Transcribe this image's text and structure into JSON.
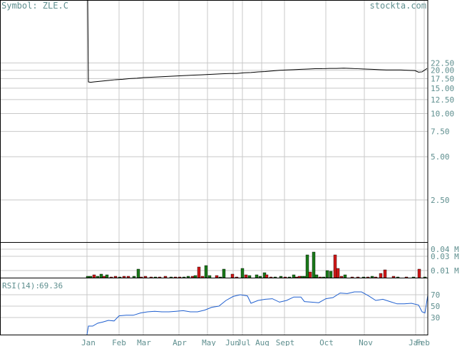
{
  "header": {
    "symbol_label": "Symbol: ZLE.C",
    "brand": "stockta.com"
  },
  "colors": {
    "text": "#5f8f8f",
    "grid": "#c8c8c8",
    "frame": "#000000",
    "price_line": "#000000",
    "rsi_line": "#1f5fcf",
    "vol_up": "#1a7a1a",
    "vol_down": "#d01818"
  },
  "chart_data": [
    {
      "type": "line",
      "name": "price",
      "y_scale": "log",
      "yticks": [
        "22.50",
        "20.00",
        "17.50",
        "15.00",
        "12.50",
        "10.00",
        "7.50",
        "5.00",
        "2.50"
      ],
      "months": [
        "Jan",
        "Feb",
        "Mar",
        "Apr",
        "May",
        "Jun",
        "Jul",
        "Aug",
        "Sept",
        "Oct",
        "Nov",
        "Jan",
        "Feb"
      ],
      "values": [
        [
          0,
          80
        ],
        [
          1,
          80
        ],
        [
          2,
          16.6
        ],
        [
          5,
          16.5
        ],
        [
          10,
          16.6
        ],
        [
          20,
          16.8
        ],
        [
          30,
          17.0
        ],
        [
          40,
          17.2
        ],
        [
          50,
          17.3
        ],
        [
          60,
          17.5
        ],
        [
          70,
          17.6
        ],
        [
          80,
          17.8
        ],
        [
          90,
          17.9
        ],
        [
          100,
          18.0
        ],
        [
          110,
          18.1
        ],
        [
          120,
          18.2
        ],
        [
          130,
          18.3
        ],
        [
          140,
          18.4
        ],
        [
          150,
          18.5
        ],
        [
          160,
          18.6
        ],
        [
          170,
          18.7
        ],
        [
          180,
          18.8
        ],
        [
          190,
          18.9
        ],
        [
          200,
          19.0
        ],
        [
          210,
          19.0
        ],
        [
          220,
          19.2
        ],
        [
          230,
          19.3
        ],
        [
          240,
          19.5
        ],
        [
          250,
          19.6
        ],
        [
          260,
          19.8
        ],
        [
          270,
          20.0
        ],
        [
          280,
          20.1
        ],
        [
          290,
          20.2
        ],
        [
          300,
          20.3
        ],
        [
          310,
          20.4
        ],
        [
          320,
          20.5
        ],
        [
          330,
          20.5
        ],
        [
          340,
          20.6
        ],
        [
          350,
          20.6
        ],
        [
          360,
          20.7
        ],
        [
          370,
          20.6
        ],
        [
          380,
          20.5
        ],
        [
          390,
          20.4
        ],
        [
          400,
          20.3
        ],
        [
          410,
          20.2
        ],
        [
          420,
          20.1
        ],
        [
          430,
          20.1
        ],
        [
          440,
          20.1
        ],
        [
          450,
          20.0
        ],
        [
          460,
          19.9
        ],
        [
          465,
          19.4
        ],
        [
          470,
          19.5
        ],
        [
          477,
          20.6
        ]
      ]
    },
    {
      "type": "bar",
      "name": "volume",
      "yticks": [
        "0.04 M",
        "0.03 M",
        "0.01 M"
      ],
      "ylim": [
        0,
        0.05
      ],
      "bars": [
        {
          "x": 1,
          "v": 0.002,
          "c": "up"
        },
        {
          "x": 5,
          "v": 0.002,
          "c": "up"
        },
        {
          "x": 10,
          "v": 0.004,
          "c": "down"
        },
        {
          "x": 15,
          "v": 0.002,
          "c": "up"
        },
        {
          "x": 20,
          "v": 0.005,
          "c": "up"
        },
        {
          "x": 24,
          "v": 0.002,
          "c": "down"
        },
        {
          "x": 28,
          "v": 0.004,
          "c": "up"
        },
        {
          "x": 34,
          "v": 0.001,
          "c": "down"
        },
        {
          "x": 40,
          "v": 0.002,
          "c": "down"
        },
        {
          "x": 46,
          "v": 0.001,
          "c": "up"
        },
        {
          "x": 52,
          "v": 0.002,
          "c": "down"
        },
        {
          "x": 58,
          "v": 0.002,
          "c": "down"
        },
        {
          "x": 66,
          "v": 0.002,
          "c": "up"
        },
        {
          "x": 72,
          "v": 0.012,
          "c": "up"
        },
        {
          "x": 76,
          "v": 0.001,
          "c": "down"
        },
        {
          "x": 82,
          "v": 0.002,
          "c": "down"
        },
        {
          "x": 90,
          "v": 0.001,
          "c": "down"
        },
        {
          "x": 96,
          "v": 0.001,
          "c": "up"
        },
        {
          "x": 102,
          "v": 0.001,
          "c": "down"
        },
        {
          "x": 110,
          "v": 0.002,
          "c": "down"
        },
        {
          "x": 118,
          "v": 0.001,
          "c": "up"
        },
        {
          "x": 124,
          "v": 0.001,
          "c": "down"
        },
        {
          "x": 130,
          "v": 0.001,
          "c": "down"
        },
        {
          "x": 136,
          "v": 0.001,
          "c": "up"
        },
        {
          "x": 142,
          "v": 0.002,
          "c": "up"
        },
        {
          "x": 148,
          "v": 0.002,
          "c": "down"
        },
        {
          "x": 152,
          "v": 0.003,
          "c": "up"
        },
        {
          "x": 157,
          "v": 0.015,
          "c": "down"
        },
        {
          "x": 162,
          "v": 0.002,
          "c": "down"
        },
        {
          "x": 167,
          "v": 0.017,
          "c": "up"
        },
        {
          "x": 172,
          "v": 0.003,
          "c": "up"
        },
        {
          "x": 182,
          "v": 0.003,
          "c": "down"
        },
        {
          "x": 187,
          "v": 0.001,
          "c": "up"
        },
        {
          "x": 192,
          "v": 0.012,
          "c": "up"
        },
        {
          "x": 204,
          "v": 0.005,
          "c": "down"
        },
        {
          "x": 210,
          "v": 0.001,
          "c": "down"
        },
        {
          "x": 218,
          "v": 0.013,
          "c": "up"
        },
        {
          "x": 223,
          "v": 0.004,
          "c": "down"
        },
        {
          "x": 228,
          "v": 0.003,
          "c": "up"
        },
        {
          "x": 238,
          "v": 0.004,
          "c": "up"
        },
        {
          "x": 243,
          "v": 0.002,
          "c": "up"
        },
        {
          "x": 249,
          "v": 0.007,
          "c": "up"
        },
        {
          "x": 252,
          "v": 0.004,
          "c": "down"
        },
        {
          "x": 258,
          "v": 0.001,
          "c": "down"
        },
        {
          "x": 264,
          "v": 0.001,
          "c": "up"
        },
        {
          "x": 272,
          "v": 0.002,
          "c": "up"
        },
        {
          "x": 278,
          "v": 0.001,
          "c": "down"
        },
        {
          "x": 284,
          "v": 0.001,
          "c": "up"
        },
        {
          "x": 290,
          "v": 0.004,
          "c": "up"
        },
        {
          "x": 294,
          "v": 0.001,
          "c": "down"
        },
        {
          "x": 298,
          "v": 0.002,
          "c": "down"
        },
        {
          "x": 302,
          "v": 0.002,
          "c": "up"
        },
        {
          "x": 306,
          "v": 0.002,
          "c": "up"
        },
        {
          "x": 309,
          "v": 0.032,
          "c": "up"
        },
        {
          "x": 313,
          "v": 0.008,
          "c": "down"
        },
        {
          "x": 318,
          "v": 0.036,
          "c": "up"
        },
        {
          "x": 322,
          "v": 0.004,
          "c": "up"
        },
        {
          "x": 327,
          "v": 0.001,
          "c": "down"
        },
        {
          "x": 332,
          "v": 0.001,
          "c": "up"
        },
        {
          "x": 337,
          "v": 0.01,
          "c": "up"
        },
        {
          "x": 342,
          "v": 0.009,
          "c": "up"
        },
        {
          "x": 348,
          "v": 0.032,
          "c": "down"
        },
        {
          "x": 352,
          "v": 0.013,
          "c": "down"
        },
        {
          "x": 357,
          "v": 0.002,
          "c": "down"
        },
        {
          "x": 362,
          "v": 0.004,
          "c": "up"
        },
        {
          "x": 372,
          "v": 0.001,
          "c": "down"
        },
        {
          "x": 380,
          "v": 0.001,
          "c": "down"
        },
        {
          "x": 388,
          "v": 0.001,
          "c": "up"
        },
        {
          "x": 394,
          "v": 0.001,
          "c": "down"
        },
        {
          "x": 400,
          "v": 0.002,
          "c": "up"
        },
        {
          "x": 405,
          "v": 0.001,
          "c": "down"
        },
        {
          "x": 412,
          "v": 0.006,
          "c": "down"
        },
        {
          "x": 418,
          "v": 0.011,
          "c": "down"
        },
        {
          "x": 430,
          "v": 0.002,
          "c": "down"
        },
        {
          "x": 436,
          "v": 0.001,
          "c": "up"
        },
        {
          "x": 448,
          "v": 0.001,
          "c": "down"
        },
        {
          "x": 458,
          "v": 0.001,
          "c": "up"
        },
        {
          "x": 466,
          "v": 0.012,
          "c": "down"
        },
        {
          "x": 474,
          "v": 0.001,
          "c": "up"
        }
      ]
    },
    {
      "type": "line",
      "name": "rsi",
      "label": "RSI(14):",
      "value_label": "69.36",
      "yticks": [
        "70",
        "50",
        "30"
      ],
      "ylim": [
        0,
        100
      ],
      "values": [
        [
          0,
          0
        ],
        [
          2,
          15
        ],
        [
          8,
          15
        ],
        [
          15,
          20
        ],
        [
          22,
          22
        ],
        [
          30,
          25
        ],
        [
          38,
          24
        ],
        [
          45,
          33
        ],
        [
          55,
          34
        ],
        [
          65,
          34
        ],
        [
          75,
          38
        ],
        [
          85,
          40
        ],
        [
          95,
          41
        ],
        [
          105,
          40
        ],
        [
          115,
          40
        ],
        [
          125,
          41
        ],
        [
          135,
          42
        ],
        [
          145,
          40
        ],
        [
          155,
          40
        ],
        [
          165,
          43
        ],
        [
          175,
          48
        ],
        [
          185,
          50
        ],
        [
          195,
          60
        ],
        [
          205,
          67
        ],
        [
          215,
          70
        ],
        [
          225,
          68
        ],
        [
          230,
          55
        ],
        [
          240,
          60
        ],
        [
          250,
          62
        ],
        [
          260,
          63
        ],
        [
          270,
          57
        ],
        [
          280,
          60
        ],
        [
          290,
          66
        ],
        [
          300,
          66
        ],
        [
          305,
          58
        ],
        [
          315,
          57
        ],
        [
          325,
          56
        ],
        [
          335,
          63
        ],
        [
          345,
          65
        ],
        [
          355,
          73
        ],
        [
          365,
          72
        ],
        [
          375,
          75
        ],
        [
          385,
          75
        ],
        [
          395,
          68
        ],
        [
          405,
          60
        ],
        [
          415,
          62
        ],
        [
          425,
          58
        ],
        [
          435,
          54
        ],
        [
          445,
          54
        ],
        [
          455,
          55
        ],
        [
          465,
          52
        ],
        [
          470,
          40
        ],
        [
          474,
          38
        ],
        [
          478,
          69
        ]
      ]
    }
  ]
}
